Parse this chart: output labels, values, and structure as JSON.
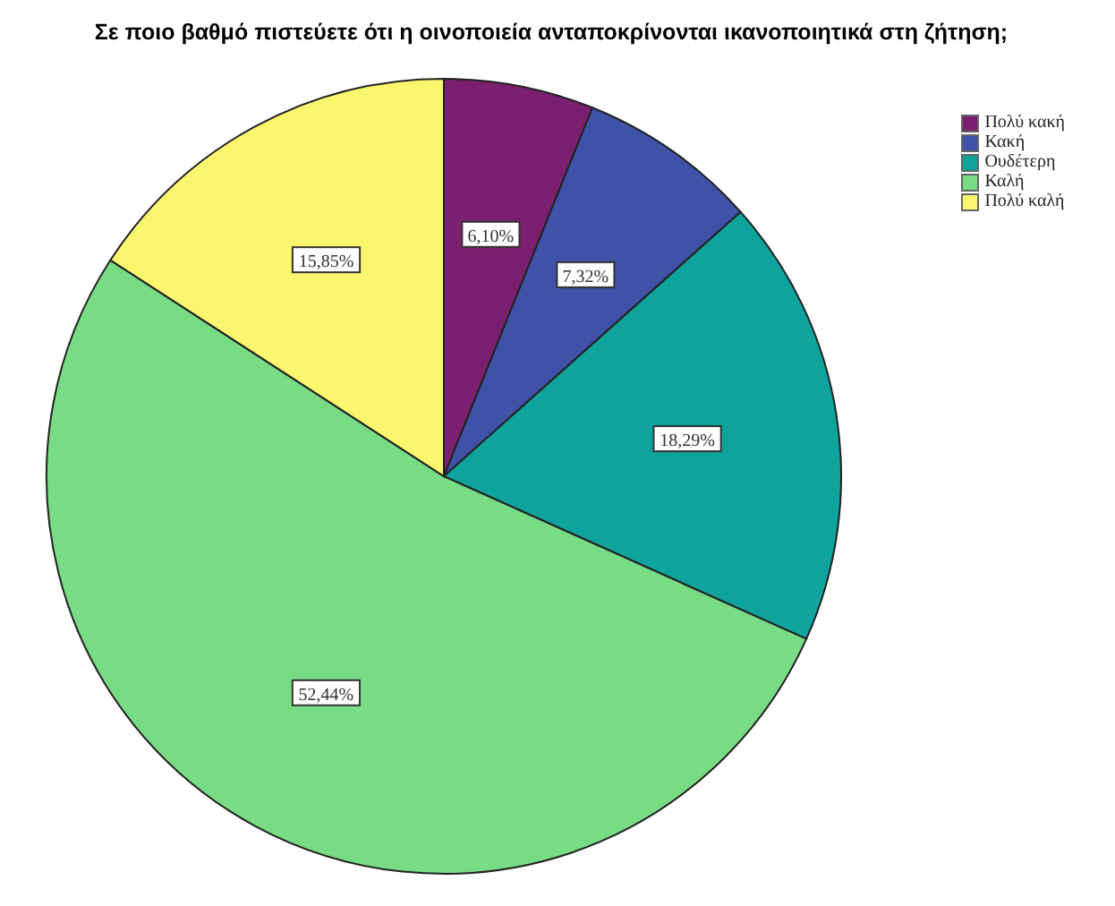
{
  "chart_data": {
    "type": "pie",
    "title": "Σε ποιο βαθμό πιστεύετε ότι η οινοποιεία ανταποκρίνονται ικανοποιητικά στη ζήτηση;",
    "categories": [
      "Πολύ κακή",
      "Κακή",
      "Ουδέτερη",
      "Καλή",
      "Πολύ καλή"
    ],
    "values": [
      6.1,
      7.32,
      18.29,
      52.44,
      15.85
    ],
    "value_labels": [
      "6,10%",
      "7,32%",
      "18,29%",
      "52,44%",
      "15,85%"
    ],
    "colors": [
      "#7b2070",
      "#3f52a8",
      "#0ea39c",
      "#78dc84",
      "#fbf66e"
    ],
    "legend": "top right"
  }
}
